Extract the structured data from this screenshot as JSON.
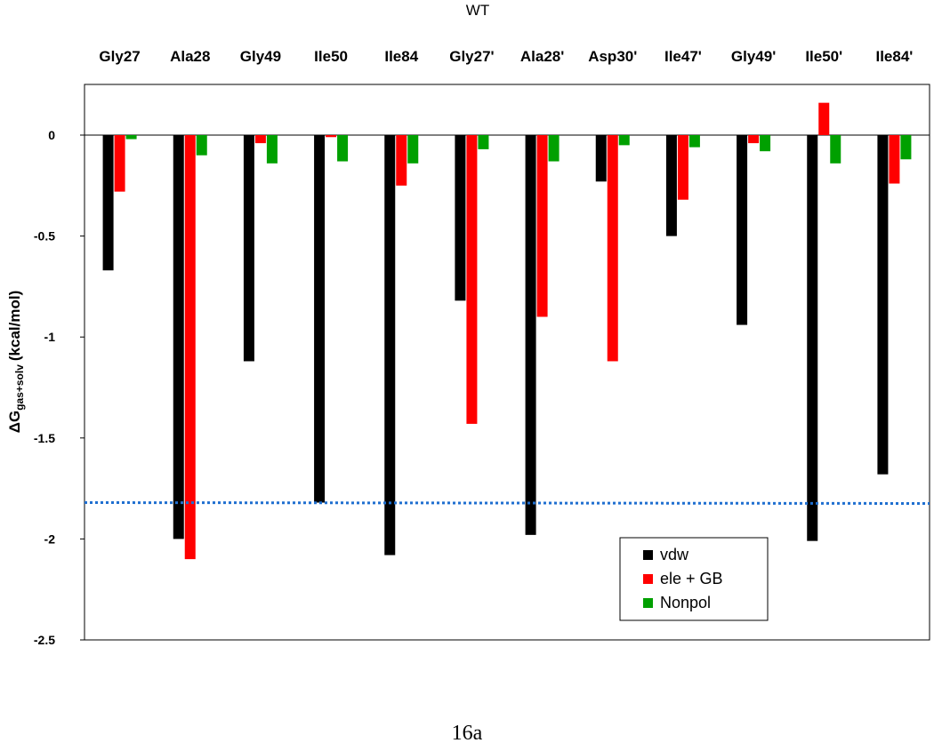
{
  "chart_data": {
    "type": "bar",
    "title": "WT",
    "categories": [
      "Gly27",
      "Ala28",
      "Gly49",
      "Ile50",
      "Ile84",
      "Gly27'",
      "Ala28'",
      "Asp30'",
      "Ile47'",
      "Gly49'",
      "Ile50'",
      "Ile84'"
    ],
    "series": [
      {
        "name": "vdw",
        "color": "#000000",
        "values": [
          -0.67,
          -2.0,
          -1.12,
          -1.82,
          -2.08,
          -0.82,
          -1.98,
          -0.23,
          -0.5,
          -0.94,
          -2.01,
          -1.68
        ]
      },
      {
        "name": "ele + GB",
        "color": "#ff0000",
        "values": [
          -0.28,
          -2.1,
          -0.04,
          -0.01,
          -0.25,
          -1.43,
          -0.9,
          -1.12,
          -0.32,
          -0.04,
          0.16,
          -0.24
        ]
      },
      {
        "name": "Nonpol",
        "color": "#00a000",
        "values": [
          -0.02,
          -0.1,
          -0.14,
          -0.13,
          -0.14,
          -0.07,
          -0.13,
          -0.05,
          -0.06,
          -0.08,
          -0.14,
          -0.12
        ]
      }
    ],
    "ylabel": {
      "symbol": "ΔG",
      "subscript": "gas+solv",
      "units": "(kcal/mol)"
    },
    "ylim": [
      -2.5,
      0.25
    ],
    "yticks": [
      "0",
      "-0.5",
      "-1",
      "-1.5",
      "-2",
      "-2.5"
    ],
    "reference_line": {
      "value": -1.82,
      "color": "#1f6fd0",
      "style": "dotted"
    },
    "grid": false,
    "legend_position": "bottom-right"
  },
  "caption": "16a"
}
